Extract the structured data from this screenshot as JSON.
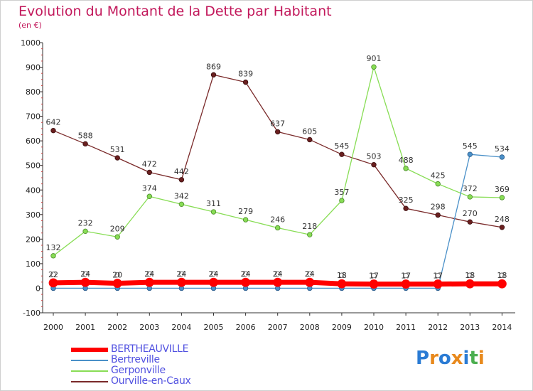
{
  "header": {
    "title": "Evolution du Montant de la Dette par Habitant",
    "unit": "(en €)"
  },
  "logo": {
    "text": "Proxiti",
    "colors": [
      "#2a7bd4",
      "#e8891c",
      "#2a7bd4",
      "#e8891c",
      "#2a7bd4",
      "#4caf50",
      "#e8891c"
    ]
  },
  "chart_data": {
    "type": "line",
    "title": "Evolution du Montant de la Dette par Habitant",
    "ylabel": "(en €)",
    "xlabel": "",
    "x": [
      "2000",
      "2001",
      "2002",
      "2003",
      "2004",
      "2005",
      "2006",
      "2007",
      "2008",
      "2009",
      "2010",
      "2011",
      "2012",
      "2013",
      "2014"
    ],
    "ylim": [
      -100,
      1000
    ],
    "yticks": [
      -100,
      0,
      100,
      200,
      300,
      400,
      500,
      600,
      700,
      800,
      900,
      1000
    ],
    "grid": false,
    "legend": "bottom-left",
    "series": [
      {
        "name": "BERTHEAUVILLE",
        "color": "#ff0000",
        "values": [
          22,
          24,
          20,
          24,
          24,
          24,
          24,
          24,
          24,
          18,
          17,
          17,
          17,
          18,
          18
        ],
        "labels": [
          "22",
          "24",
          "20",
          "24",
          "24",
          "24",
          "24",
          "24",
          "24",
          "18",
          "17",
          "17",
          "17",
          "18",
          "18"
        ]
      },
      {
        "name": "Bertreville",
        "color": "#4a90c8",
        "values": [
          0,
          0,
          0,
          0,
          0,
          0,
          0,
          0,
          0,
          0,
          0,
          0,
          0,
          545,
          534
        ],
        "labels": [
          "",
          "",
          "",
          "",
          "",
          "",
          "",
          "",
          "",
          "",
          "",
          "",
          "",
          "545",
          "534"
        ]
      },
      {
        "name": "Gerponville",
        "color": "#88dd55",
        "values": [
          132,
          232,
          209,
          374,
          342,
          311,
          279,
          246,
          218,
          357,
          901,
          488,
          425,
          372,
          369
        ],
        "labels": [
          "132",
          "232",
          "209",
          "374",
          "342",
          "311",
          "279",
          "246",
          "218",
          "357",
          "901",
          "488",
          "425",
          "372",
          "369"
        ]
      },
      {
        "name": "Ourville-en-Caux",
        "color": "#7a2a2a",
        "values": [
          642,
          588,
          531,
          472,
          442,
          869,
          839,
          637,
          605,
          545,
          503,
          325,
          298,
          270,
          248
        ],
        "labels": [
          "642",
          "588",
          "531",
          "472",
          "442",
          "869",
          "839",
          "637",
          "605",
          "545",
          "503",
          "325",
          "298",
          "270",
          "248"
        ]
      }
    ]
  }
}
